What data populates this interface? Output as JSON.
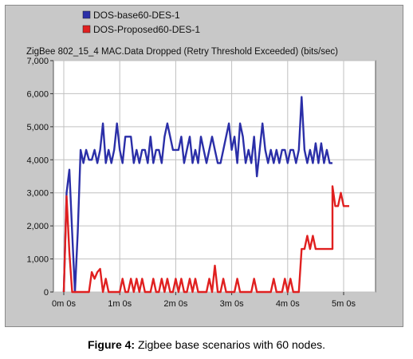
{
  "chart_data": {
    "type": "line",
    "title": "ZigBee 802_15_4 MAC.Data Dropped (Retry Threshold Exceeded) (bits/sec)",
    "xlabel": "",
    "ylabel": "",
    "x_unit": "seconds",
    "xlim": [
      0,
      300
    ],
    "ylim": [
      0,
      7000
    ],
    "x_ticks": [
      0,
      60,
      120,
      180,
      240,
      300
    ],
    "x_tick_labels": [
      "0m 0s",
      "1m 0s",
      "2m 0s",
      "3m 0s",
      "4m 0s",
      "5m 0s"
    ],
    "y_ticks": [
      0,
      1000,
      2000,
      3000,
      4000,
      5000,
      6000,
      7000
    ],
    "y_tick_labels": [
      "0",
      "1,000",
      "2,000",
      "3,000",
      "4,000",
      "5,000",
      "6,000",
      "7,000"
    ],
    "grid": true,
    "legend_position": "top-left",
    "series": [
      {
        "name": "DOS-base60-DES-1",
        "color": "#2b2fa8",
        "x": [
          0,
          3,
          6,
          9,
          12,
          15,
          18,
          21,
          24,
          27,
          30,
          33,
          36,
          39,
          42,
          45,
          48,
          51,
          54,
          57,
          60,
          63,
          66,
          69,
          72,
          75,
          78,
          81,
          84,
          87,
          90,
          93,
          96,
          99,
          102,
          105,
          108,
          111,
          114,
          117,
          120,
          123,
          126,
          129,
          132,
          135,
          138,
          141,
          144,
          147,
          150,
          153,
          156,
          159,
          162,
          165,
          168,
          171,
          174,
          177,
          180,
          183,
          186,
          189,
          192,
          195,
          198,
          201,
          204,
          207,
          210,
          213,
          216,
          219,
          222,
          225,
          228,
          231,
          234,
          237,
          240,
          243,
          246,
          249,
          252,
          255,
          258,
          261,
          264,
          267,
          270,
          273,
          276,
          279,
          282,
          285,
          288
        ],
        "y": [
          0,
          3000,
          3700,
          1800,
          0,
          1800,
          4300,
          3900,
          4300,
          4000,
          4000,
          4300,
          3900,
          4300,
          5100,
          3900,
          4300,
          3900,
          4300,
          5100,
          4300,
          3900,
          4700,
          4700,
          4700,
          3900,
          4300,
          3900,
          4300,
          4300,
          3900,
          4700,
          3900,
          4300,
          4300,
          3900,
          4700,
          5100,
          4700,
          4300,
          4300,
          4300,
          4700,
          3900,
          4300,
          4700,
          3900,
          4300,
          3900,
          4700,
          4300,
          3900,
          4300,
          4700,
          4300,
          3900,
          3900,
          4300,
          4700,
          5100,
          4300,
          4700,
          3900,
          5100,
          4700,
          3900,
          4300,
          3900,
          4700,
          3500,
          4300,
          5100,
          4300,
          3900,
          4300,
          3900,
          4300,
          3900,
          4300,
          4300,
          3900,
          4300,
          4300,
          3900,
          4300,
          5900,
          4300,
          3900,
          4300,
          3900,
          4500,
          3900,
          4500,
          3900,
          4300,
          3900,
          3900
        ],
        "x_extra": [],
        "y_extra": []
      },
      {
        "name": "DOS-Proposed60-DES-1",
        "color": "#e02020",
        "x": [
          0,
          3,
          6,
          9,
          12,
          15,
          18,
          21,
          24,
          27,
          30,
          33,
          36,
          39,
          42,
          45,
          48,
          51,
          54,
          57,
          60,
          63,
          66,
          69,
          72,
          75,
          78,
          81,
          84,
          87,
          90,
          93,
          96,
          99,
          102,
          105,
          108,
          111,
          114,
          117,
          120,
          123,
          126,
          129,
          132,
          135,
          138,
          141,
          144,
          147,
          150,
          153,
          156,
          159,
          162,
          165,
          168,
          171,
          174,
          177,
          180,
          183,
          186,
          189,
          192,
          195,
          198,
          201,
          204,
          207,
          210,
          213,
          216,
          219,
          222,
          225,
          228,
          231,
          234,
          237,
          240,
          243,
          246,
          249,
          252,
          255,
          258,
          261,
          264,
          267,
          270,
          273,
          276,
          279,
          282,
          285,
          288
        ],
        "y": [
          0,
          2900,
          1200,
          0,
          0,
          0,
          0,
          0,
          0,
          0,
          600,
          400,
          600,
          700,
          0,
          400,
          0,
          0,
          0,
          0,
          0,
          400,
          0,
          0,
          400,
          0,
          400,
          0,
          400,
          0,
          0,
          0,
          400,
          0,
          0,
          400,
          0,
          400,
          0,
          0,
          400,
          0,
          400,
          0,
          0,
          400,
          0,
          400,
          0,
          0,
          0,
          0,
          400,
          0,
          800,
          0,
          0,
          400,
          0,
          0,
          0,
          0,
          400,
          0,
          0,
          0,
          0,
          0,
          400,
          0,
          0,
          0,
          0,
          0,
          0,
          400,
          0,
          0,
          0,
          400,
          0,
          400,
          0,
          0,
          0,
          1300,
          1300,
          1700,
          1300,
          1700,
          1300,
          1300,
          1300,
          1300,
          1300,
          1300,
          1300
        ],
        "x_extra": [
          288,
          291,
          294,
          297,
          300,
          303,
          306
        ],
        "y_extra": [
          3200,
          2600,
          2600,
          3000,
          2600,
          2600,
          2600
        ]
      }
    ]
  },
  "caption": {
    "label": "Figure 4:",
    "text": " Zigbee base scenarios with 60 nodes."
  }
}
